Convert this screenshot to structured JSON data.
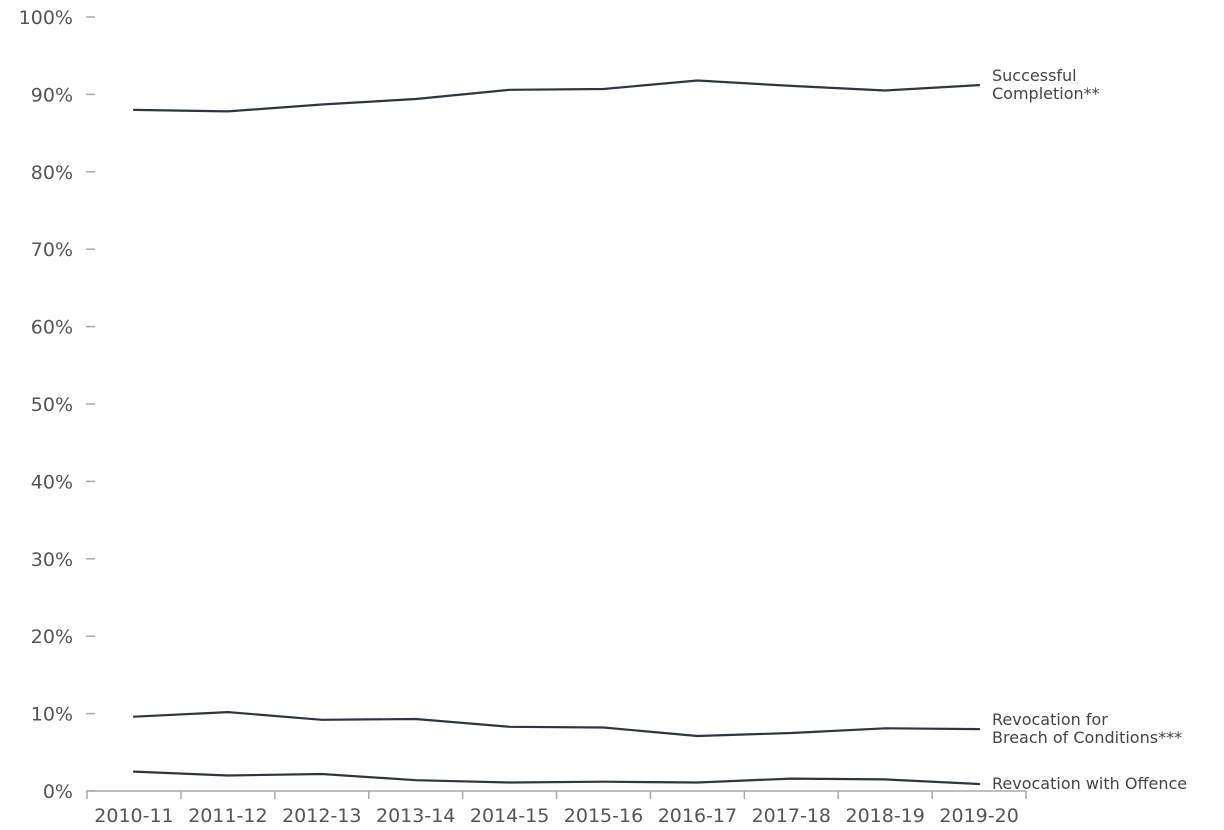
{
  "chart_data": {
    "type": "line",
    "title": "",
    "xlabel": "",
    "ylabel": "",
    "categories": [
      "2010-11",
      "2011-12",
      "2012-13",
      "2013-14",
      "2014-15",
      "2015-16",
      "2016-17",
      "2017-18",
      "2018-19",
      "2019-20"
    ],
    "ylim": [
      0,
      100
    ],
    "yticks": [
      "0%",
      "10%",
      "20%",
      "30%",
      "40%",
      "50%",
      "60%",
      "70%",
      "80%",
      "90%",
      "100%"
    ],
    "grid": false,
    "legend": "inline-right",
    "series": [
      {
        "name": "Successful Completion**",
        "label_lines": [
          "Successful",
          "Completion**"
        ],
        "values": [
          88.0,
          87.8,
          88.7,
          89.4,
          90.6,
          90.7,
          91.8,
          91.1,
          90.5,
          91.2
        ]
      },
      {
        "name": "Revocation for Breach of Conditions***",
        "label_lines": [
          "Revocation for",
          "Breach of Conditions***"
        ],
        "values": [
          9.6,
          10.2,
          9.2,
          9.3,
          8.3,
          8.2,
          7.1,
          7.5,
          8.1,
          8.0
        ]
      },
      {
        "name": "Revocation with Offence",
        "label_lines": [
          "Revocation with Offence"
        ],
        "values": [
          2.5,
          2.0,
          2.2,
          1.4,
          1.1,
          1.2,
          1.1,
          1.6,
          1.5,
          0.9
        ]
      }
    ],
    "colors": {
      "line": "#2f3640",
      "axis": "#aaaaaa",
      "text": "#555555"
    }
  }
}
